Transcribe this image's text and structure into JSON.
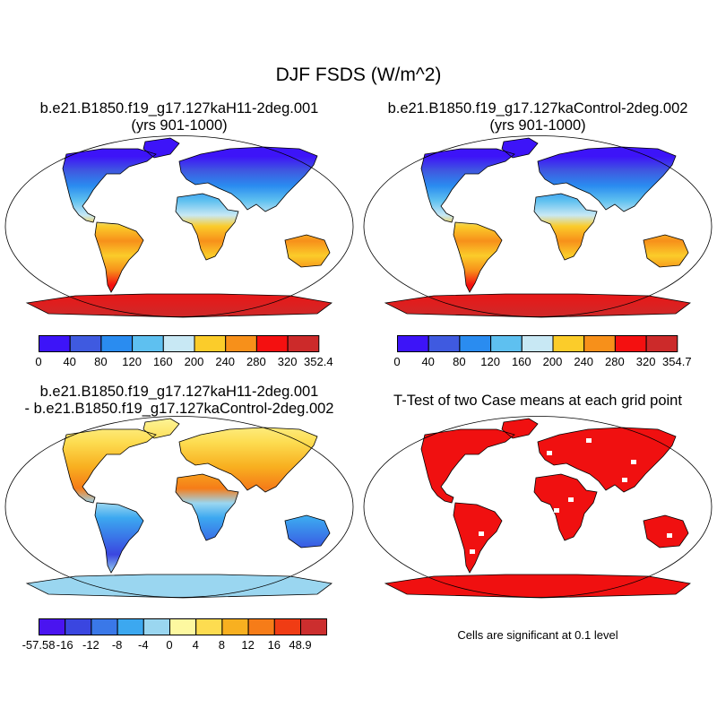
{
  "main_title": "DJF FSDS (W/m^2)",
  "colors": {
    "abs_scale": [
      "#3d14f8",
      "#3f5ae0",
      "#2a8cf0",
      "#5ec0f0",
      "#c8e8f4",
      "#fbcc2a",
      "#f7901a",
      "#f41010",
      "#cc2a2a"
    ],
    "diff_scale": [
      "#4a14f0",
      "#3a46e0",
      "#3a78e8",
      "#3ca8f0",
      "#9ad6f0",
      "#fdf8a0",
      "#fddc50",
      "#f8b020",
      "#f67c18",
      "#f03c14",
      "#cc2e2e"
    ],
    "signif": "#f01010",
    "outline": "#000000"
  },
  "panels": {
    "p1": {
      "title_line1": "b.e21.B1850.f19_g17.127kaH11-2deg.001",
      "title_line2": "(yrs 901-1000)",
      "colorbar_labels": [
        "0",
        "40",
        "80",
        "120",
        "160",
        "200",
        "240",
        "280",
        "320",
        "352.4"
      ]
    },
    "p2": {
      "title_line1": "b.e21.B1850.f19_g17.127kaControl-2deg.002",
      "title_line2": "(yrs 901-1000)",
      "colorbar_labels": [
        "0",
        "40",
        "80",
        "120",
        "160",
        "200",
        "240",
        "280",
        "320",
        "354.7"
      ]
    },
    "p3": {
      "title_line1": "b.e21.B1850.f19_g17.127kaH11-2deg.001",
      "title_line2": "- b.e21.B1850.f19_g17.127kaControl-2deg.002",
      "colorbar_labels": [
        "-57.58",
        "-16",
        "-12",
        "-8",
        "-4",
        "0",
        "4",
        "8",
        "12",
        "16",
        "48.9"
      ]
    },
    "p4": {
      "title": "T-Test of two Case means at each grid point",
      "note": "Cells are significant at 0.1 level"
    }
  }
}
